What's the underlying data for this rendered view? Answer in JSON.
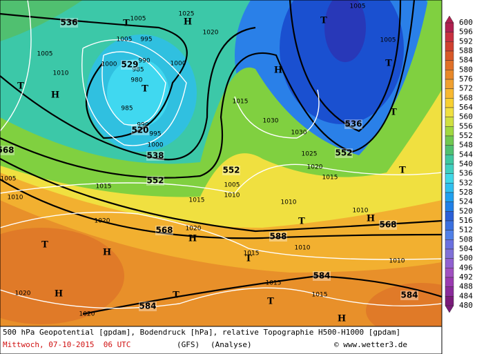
{
  "map": {
    "geopotential_labels": [
      536,
      529,
      520,
      538,
      552,
      552,
      568,
      588,
      568,
      584,
      584,
      584,
      536,
      552,
      568
    ],
    "pressure_labels": [
      1005,
      1005,
      995,
      1005,
      1010,
      1000,
      990,
      985,
      980,
      985,
      990,
      995,
      1000,
      1000,
      1020,
      1025,
      1005,
      1005,
      1015,
      1030,
      1030,
      1025,
      1020,
      1015,
      1005,
      1010,
      1015,
      1015,
      1010,
      1005,
      1010,
      1010,
      1020,
      1020,
      1015,
      1010,
      1010,
      1015,
      1015,
      1020,
      1020
    ],
    "pressure_centers": [
      "T",
      "H",
      "T",
      "T",
      "H",
      "T",
      "H",
      "T",
      "T",
      "T",
      "H",
      "T",
      "H",
      "T",
      "H",
      "T",
      "H",
      "T",
      "T",
      "H"
    ]
  },
  "legend": {
    "levels": [
      600,
      596,
      592,
      588,
      584,
      580,
      576,
      572,
      568,
      564,
      560,
      556,
      552,
      548,
      544,
      540,
      536,
      532,
      528,
      524,
      520,
      516,
      512,
      508,
      504,
      500,
      496,
      492,
      488,
      484,
      480
    ],
    "colors": [
      "#b02050",
      "#c83040",
      "#d04030",
      "#d85828",
      "#e07028",
      "#e88828",
      "#f0a030",
      "#f8b830",
      "#f8d030",
      "#f0e040",
      "#d0e040",
      "#a0d840",
      "#70c850",
      "#50c070",
      "#40c8a0",
      "#40d0c0",
      "#40d8e8",
      "#30c0f0",
      "#20a0f0",
      "#2080e8",
      "#2a60d8",
      "#3a70e0",
      "#5080e8",
      "#6a70e0",
      "#8070d8",
      "#9060d0",
      "#a050c0",
      "#9a3ab0",
      "#8a2a9a",
      "#7a1a7a"
    ]
  },
  "caption": {
    "line1": "500 hPa Geopotential [gpdam], Bodendruck [hPa], relative Topographie H500-H1000 [gpdam]",
    "date": "Mittwoch, 07-10-2015  06 UTC",
    "model": "(GFS)",
    "run": "(Analyse)",
    "credit": "© www.wetter3.de"
  }
}
